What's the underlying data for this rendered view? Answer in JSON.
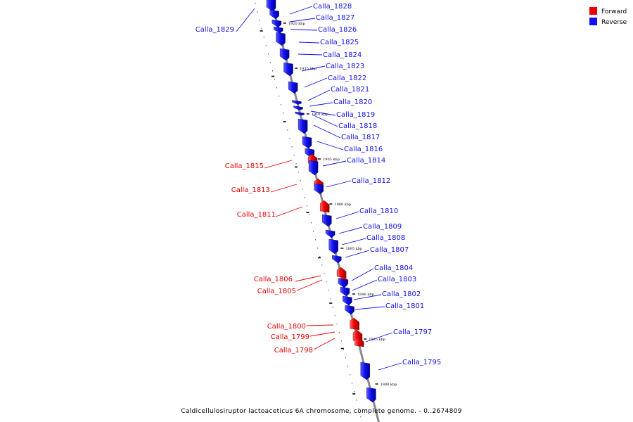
{
  "colors": {
    "forward": "#ee0000",
    "reverse": "#1111ee",
    "backbone": "#8a8a8a"
  },
  "legend": {
    "forward_label": "Forward",
    "reverse_label": "Reverse"
  },
  "caption": "Caldicellulosiruptor lactoaceticus 6A chromosome, complete genome. - 0..2674809",
  "scale_ticks": [
    {
      "label": "1920 kbp"
    },
    {
      "label": "1915 kbp"
    },
    {
      "label": "1910 kbp"
    },
    {
      "label": "1905 kbp"
    },
    {
      "label": "1900 kbp"
    },
    {
      "label": "1895 kbp"
    },
    {
      "label": "1890 kbp"
    },
    {
      "label": "1885 kbp"
    },
    {
      "label": "1880 kbp"
    }
  ],
  "genes": [
    {
      "name": "Calla_1829",
      "strand": "reverse"
    },
    {
      "name": "Calla_1828",
      "strand": "reverse"
    },
    {
      "name": "Calla_1827",
      "strand": "reverse"
    },
    {
      "name": "Calla_1826",
      "strand": "reverse"
    },
    {
      "name": "Calla_1825",
      "strand": "reverse"
    },
    {
      "name": "Calla_1824",
      "strand": "reverse"
    },
    {
      "name": "Calla_1823",
      "strand": "reverse"
    },
    {
      "name": "Calla_1822",
      "strand": "reverse"
    },
    {
      "name": "Calla_1821",
      "strand": "reverse"
    },
    {
      "name": "Calla_1820",
      "strand": "reverse"
    },
    {
      "name": "Calla_1819",
      "strand": "reverse"
    },
    {
      "name": "Calla_1818",
      "strand": "reverse"
    },
    {
      "name": "Calla_1817",
      "strand": "reverse"
    },
    {
      "name": "Calla_1816",
      "strand": "reverse"
    },
    {
      "name": "Calla_1815",
      "strand": "forward"
    },
    {
      "name": "Calla_1814",
      "strand": "reverse"
    },
    {
      "name": "Calla_1813",
      "strand": "forward"
    },
    {
      "name": "Calla_1812",
      "strand": "reverse"
    },
    {
      "name": "Calla_1811",
      "strand": "forward"
    },
    {
      "name": "Calla_1810",
      "strand": "reverse"
    },
    {
      "name": "Calla_1809",
      "strand": "reverse"
    },
    {
      "name": "Calla_1808",
      "strand": "reverse"
    },
    {
      "name": "Calla_1807",
      "strand": "reverse"
    },
    {
      "name": "Calla_1806",
      "strand": "forward"
    },
    {
      "name": "Calla_1805",
      "strand": "forward"
    },
    {
      "name": "Calla_1804",
      "strand": "reverse"
    },
    {
      "name": "Calla_1803",
      "strand": "reverse"
    },
    {
      "name": "Calla_1802",
      "strand": "reverse"
    },
    {
      "name": "Calla_1801",
      "strand": "reverse"
    },
    {
      "name": "Calla_1800",
      "strand": "forward"
    },
    {
      "name": "Calla_1799",
      "strand": "forward"
    },
    {
      "name": "Calla_1798",
      "strand": "forward"
    },
    {
      "name": "Calla_1797",
      "strand": "reverse"
    },
    {
      "name": "Calla_1795",
      "strand": "reverse"
    }
  ]
}
